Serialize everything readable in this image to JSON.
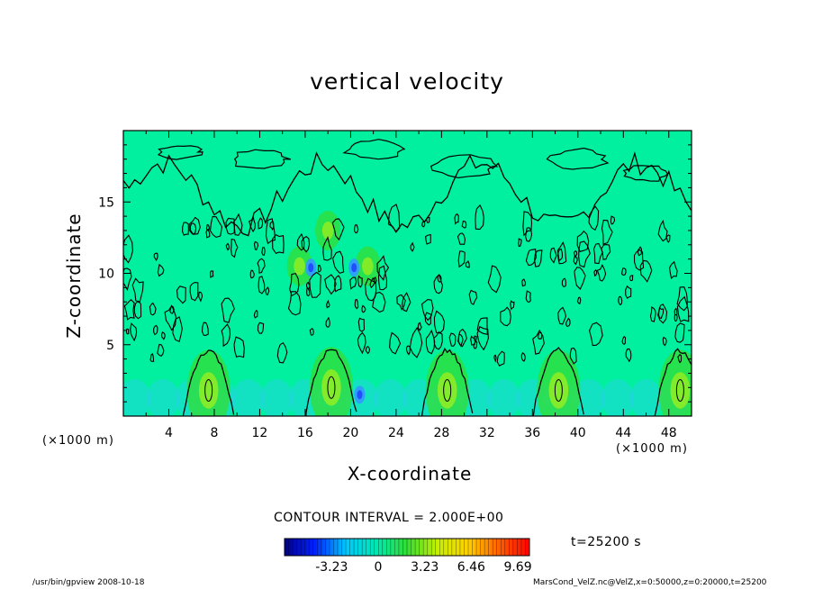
{
  "chart_data": {
    "type": "heatmap",
    "title": "vertical velocity",
    "xlabel": "X-coordinate",
    "ylabel": "Z-coordinate",
    "x_unit_label_left": "(×1000 m)",
    "x_unit_label_right": "(×1000 m)",
    "xlim": [
      0,
      50
    ],
    "ylim": [
      0,
      20
    ],
    "x_ticks": [
      "4",
      "8",
      "12",
      "16",
      "20",
      "24",
      "28",
      "32",
      "36",
      "40",
      "44",
      "48"
    ],
    "y_ticks": [
      "5",
      "10",
      "15"
    ],
    "contour_interval": "CONTOUR INTERVAL = 2.000E+00",
    "time": "t=25200 s",
    "colorbar": {
      "tick_labels": [
        "-3.23",
        "0",
        "3.23",
        "6.46",
        "9.69"
      ],
      "tick_values": [
        -3.23,
        0,
        3.23,
        6.46,
        9.69
      ],
      "range": [
        -6.5,
        10.5
      ],
      "colors": [
        "#00008c",
        "#0022ff",
        "#00c8ff",
        "#00e8b0",
        "#33dd33",
        "#c8f000",
        "#ffd000",
        "#ff6000",
        "#ff0000"
      ]
    },
    "updrafts": [
      {
        "x": 7.5,
        "z": 1.8,
        "w": 3.5
      },
      {
        "x": 18.3,
        "z": 2.0,
        "w": 4.5
      },
      {
        "x": 28.5,
        "z": 1.8,
        "w": 3.0
      },
      {
        "x": 38.3,
        "z": 1.8,
        "w": 3.5
      },
      {
        "x": 49.0,
        "z": 1.8,
        "w": 4.0
      },
      {
        "x": 15.5,
        "z": 10.5,
        "w": 2.5
      },
      {
        "x": 21.5,
        "z": 10.5,
        "w": 2.0
      },
      {
        "x": 18.0,
        "z": 13.0,
        "w": 2.0
      }
    ],
    "downdrafts": [
      {
        "x": 16.5,
        "z": 10.4,
        "w": -3.0
      },
      {
        "x": 20.3,
        "z": 10.4,
        "w": -3.0
      },
      {
        "x": 20.8,
        "z": 1.5,
        "w": -2.5
      }
    ]
  },
  "footer": {
    "left": "/usr/bin/gpview   2008-10-18",
    "right": "MarsCond_VelZ.nc@VelZ,x=0:50000,z=0:20000,t=25200"
  },
  "colors": {
    "field": "#00f0a0",
    "contour": "#000000"
  }
}
